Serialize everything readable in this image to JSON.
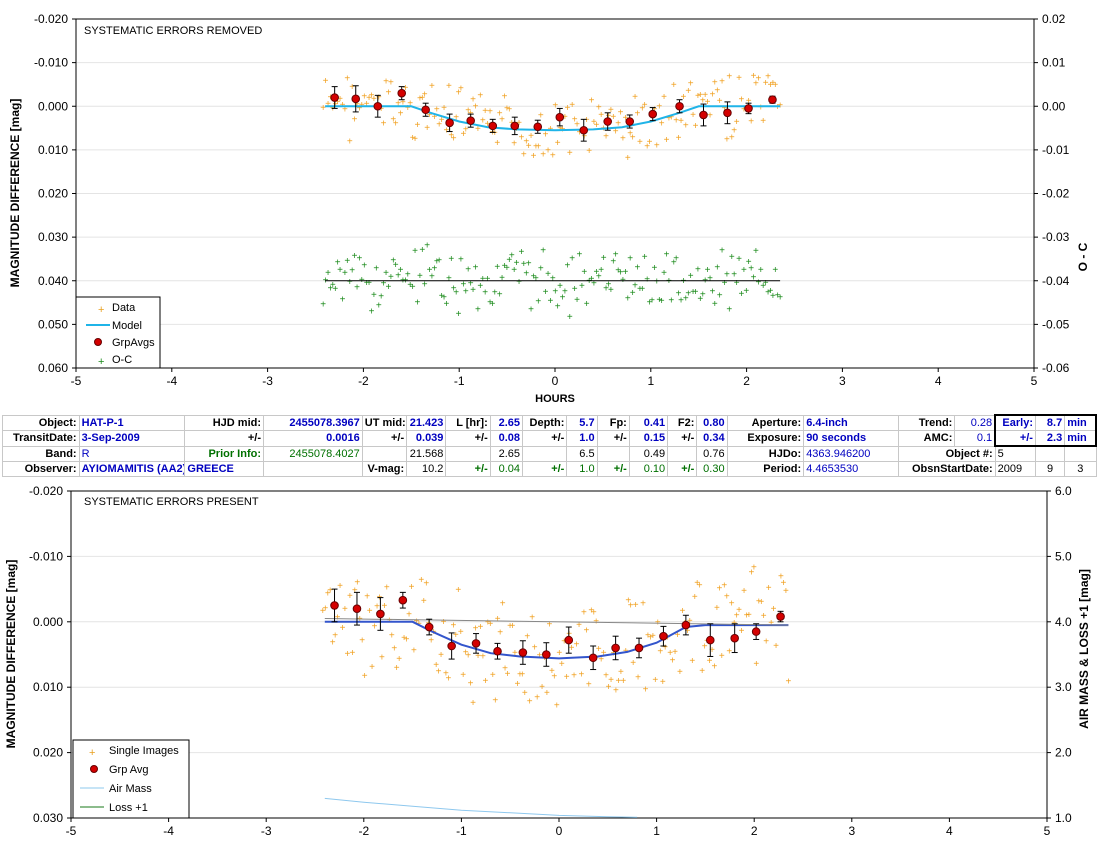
{
  "chart_data": [
    {
      "type": "scatter",
      "title": "SYSTEMATIC ERRORS REMOVED",
      "xlabel": "HOURS",
      "ylabel": "MAGNITUDE DIFFERENCE [mag]",
      "y2label": "O - C",
      "xlim": [
        -5,
        5
      ],
      "ylim": [
        -0.02,
        0.06
      ],
      "y2lim": [
        -0.06,
        0.02
      ],
      "yreversed": true,
      "xticks": [
        "-5",
        "-4",
        "-3",
        "-2",
        "-1",
        "0",
        "1",
        "2",
        "3",
        "4",
        "5"
      ],
      "yticks": [
        "-0.020",
        "-0.010",
        "0.000",
        "0.010",
        "0.020",
        "0.030",
        "0.040",
        "0.050",
        "0.060"
      ],
      "y2ticks": [
        "-0.06",
        "-0.05",
        "-0.04",
        "-0.03",
        "-0.02",
        "-0.01",
        "0.00",
        "0.01",
        "0.02"
      ],
      "legend_position": "bottom-left",
      "legend": [
        "Data",
        "Model",
        "GrpAvgs",
        "O-C"
      ],
      "series": [
        {
          "name": "Model",
          "kind": "line",
          "color": "#1fb4e8",
          "points": [
            [
              -2.4,
              0.0
            ],
            [
              -1.5,
              0.0
            ],
            [
              -1.3,
              0.0015
            ],
            [
              -1.0,
              0.0035
            ],
            [
              -0.7,
              0.0048
            ],
            [
              -0.4,
              0.0053
            ],
            [
              0.0,
              0.0055
            ],
            [
              0.4,
              0.0053
            ],
            [
              0.7,
              0.0048
            ],
            [
              1.0,
              0.0035
            ],
            [
              1.3,
              0.0015
            ],
            [
              1.5,
              0.0
            ],
            [
              2.35,
              0.0
            ]
          ]
        },
        {
          "name": "GrpAvgs",
          "kind": "errorbar",
          "color": "#d40000",
          "points": [
            [
              -2.3,
              -0.002,
              0.0025
            ],
            [
              -2.08,
              -0.0017,
              0.003
            ],
            [
              -1.85,
              0.0,
              0.0025
            ],
            [
              -1.6,
              -0.003,
              0.0015
            ],
            [
              -1.35,
              0.0008,
              0.0015
            ],
            [
              -1.1,
              0.0038,
              0.002
            ],
            [
              -0.88,
              0.0033,
              0.0015
            ],
            [
              -0.65,
              0.0045,
              0.0015
            ],
            [
              -0.42,
              0.0045,
              0.002
            ],
            [
              -0.18,
              0.0047,
              0.0015
            ],
            [
              0.05,
              0.0025,
              0.002
            ],
            [
              0.3,
              0.0055,
              0.0025
            ],
            [
              0.55,
              0.0035,
              0.002
            ],
            [
              0.78,
              0.0035,
              0.0015
            ],
            [
              1.02,
              0.0018,
              0.0015
            ],
            [
              1.3,
              0.0,
              0.0015
            ],
            [
              1.55,
              0.002,
              0.0025
            ],
            [
              1.8,
              0.0015,
              0.0025
            ],
            [
              2.02,
              0.0005,
              0.0012
            ],
            [
              2.27,
              -0.0015,
              0.0008
            ]
          ]
        },
        {
          "name": "O-C",
          "kind": "line",
          "color": "#000000",
          "points": [
            [
              -2.4,
              0.04
            ],
            [
              2.35,
              0.04
            ]
          ]
        }
      ]
    },
    {
      "type": "scatter",
      "title": "SYSTEMATIC ERRORS PRESENT",
      "xlabel": "",
      "ylabel": "MAGNITUDE DIFFERENCE [mag]",
      "y2label": "AIR MASS & LOSS +1 [mag]",
      "xlim": [
        -5,
        5
      ],
      "ylim": [
        -0.02,
        0.03
      ],
      "y2lim": [
        1.0,
        6.0
      ],
      "yreversed": true,
      "xticks": [
        "-5",
        "-4",
        "-3",
        "-2",
        "-1",
        "0",
        "1",
        "2",
        "3",
        "4",
        "5"
      ],
      "yticks": [
        "-0.020",
        "-0.010",
        "0.000",
        "0.010",
        "0.020",
        "0.030"
      ],
      "y2ticks": [
        "1.0",
        "2.0",
        "3.0",
        "4.0",
        "5.0",
        "6.0"
      ],
      "legend_position": "bottom-left",
      "legend": [
        "Single Images",
        "Grp Avg",
        "Air Mass",
        "Loss +1"
      ],
      "series": [
        {
          "name": "Model",
          "kind": "line",
          "color": "#3355cc",
          "points": [
            [
              -2.4,
              0.0
            ],
            [
              -1.5,
              0.0
            ],
            [
              -1.3,
              0.0015
            ],
            [
              -1.0,
              0.0035
            ],
            [
              -0.7,
              0.0048
            ],
            [
              -0.4,
              0.0053
            ],
            [
              0.0,
              0.0056
            ],
            [
              0.4,
              0.0053
            ],
            [
              0.7,
              0.0046
            ],
            [
              1.0,
              0.0032
            ],
            [
              1.3,
              0.0008
            ],
            [
              1.5,
              0.0005
            ],
            [
              2.35,
              0.0005
            ]
          ]
        },
        {
          "name": "Trend",
          "kind": "line",
          "color": "#888888",
          "points": [
            [
              -2.4,
              -0.0005
            ],
            [
              2.35,
              0.0005
            ]
          ]
        },
        {
          "name": "Grp Avg",
          "kind": "errorbar",
          "color": "#d40000",
          "points": [
            [
              -2.3,
              -0.0025,
              0.0025
            ],
            [
              -2.07,
              -0.002,
              0.0025
            ],
            [
              -1.83,
              -0.0012,
              0.0025
            ],
            [
              -1.6,
              -0.0033,
              0.0012
            ],
            [
              -1.33,
              0.0008,
              0.0012
            ],
            [
              -1.1,
              0.0037,
              0.002
            ],
            [
              -0.85,
              0.0033,
              0.0015
            ],
            [
              -0.63,
              0.0045,
              0.0012
            ],
            [
              -0.37,
              0.0047,
              0.0018
            ],
            [
              -0.13,
              0.005,
              0.0018
            ],
            [
              0.1,
              0.0028,
              0.002
            ],
            [
              0.35,
              0.0055,
              0.0018
            ],
            [
              0.58,
              0.004,
              0.0018
            ],
            [
              0.82,
              0.004,
              0.0015
            ],
            [
              1.07,
              0.0022,
              0.0015
            ],
            [
              1.3,
              0.0005,
              0.0015
            ],
            [
              1.55,
              0.0028,
              0.0025
            ],
            [
              1.8,
              0.0025,
              0.0022
            ],
            [
              2.02,
              0.0015,
              0.0012
            ],
            [
              2.27,
              -0.0008,
              0.0008
            ]
          ]
        },
        {
          "name": "Air Mass",
          "kind": "line",
          "color": "#8ec8ee",
          "points": [
            [
              -2.4,
              1.3
            ],
            [
              -2.0,
              1.24
            ],
            [
              -1.5,
              1.18
            ],
            [
              -1.0,
              1.12
            ],
            [
              -0.5,
              1.08
            ],
            [
              0.0,
              1.04
            ],
            [
              0.5,
              1.02
            ],
            [
              0.8,
              1.01
            ]
          ]
        }
      ]
    }
  ],
  "info": {
    "r1": {
      "object_lbl": "Object:",
      "object": "HAT-P-1",
      "hjd_lbl": "HJD mid:",
      "hjd": "2455078.3967",
      "ut_lbl": "UT mid:",
      "ut": "21.423",
      "l_lbl": "L [hr]:",
      "l": "2.65",
      "depth_lbl": "Depth:",
      "depth": "5.7",
      "fp_lbl": "Fp:",
      "fp": "0.41",
      "f2_lbl": "F2:",
      "f2": "0.80",
      "ap_lbl": "Aperture:",
      "ap": "6.4-inch",
      "trend_lbl": "Trend:",
      "trend": "0.28",
      "early_lbl": "Early:",
      "early": "8.7",
      "early_unit": "min"
    },
    "r2": {
      "td_lbl": "TransitDate:",
      "td": "3-Sep-2009",
      "pm1": "+/-",
      "hjd_err": "0.0016",
      "pm2": "+/-",
      "ut_err": "0.039",
      "pm3": "+/-",
      "l_err": "0.08",
      "pm4": "+/-",
      "depth_err": "1.0",
      "pm5": "+/-",
      "fp_err": "0.15",
      "pm6": "+/-",
      "f2_err": "0.34",
      "exp_lbl": "Exposure:",
      "exp": "90 seconds",
      "amc_lbl": "AMC:",
      "amc": "0.1",
      "pm7": "+/-",
      "early_err": "2.3",
      "early_unit": "min"
    },
    "r3": {
      "band_lbl": "Band:",
      "band": "R",
      "prior_lbl": "Prior Info:",
      "prior_hjd": "2455078.4027",
      "prior_ut": "21.568",
      "prior_l": "2.65",
      "prior_depth": "6.5",
      "prior_fp": "0.49",
      "prior_f2": "0.76",
      "hjdo_lbl": "HJDo:",
      "hjdo": "4363.946200",
      "objn_lbl": "Object #:",
      "objn": "5"
    },
    "r4": {
      "obs_lbl": "Observer:",
      "obs": "AYIOMAMITIS (AA2)",
      "loc": "GREECE",
      "vmag_lbl": "V-mag:",
      "vmag": "10.2",
      "pm1": "+/-",
      "vmag_err": "0.04",
      "pm2": "+/-",
      "v2": "1.0",
      "pm3": "+/-",
      "v3": "0.10",
      "pm4": "+/-",
      "v4": "0.30",
      "per_lbl": "Period:",
      "per": "4.4653530",
      "osd_lbl": "ObsnStartDate:",
      "year": "2009",
      "month": "9",
      "day": "3"
    }
  }
}
